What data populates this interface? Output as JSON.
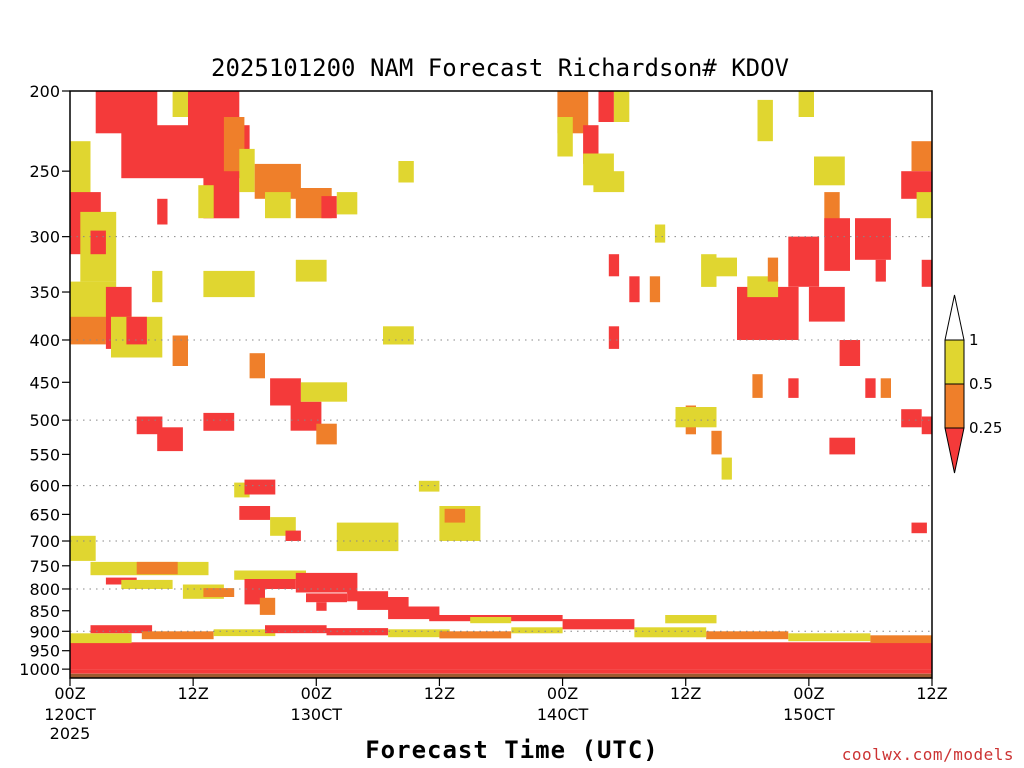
{
  "chart_data": {
    "type": "heatmap",
    "title": "2025101200 NAM Forecast Richardson# KDOV",
    "xlabel": "Forecast Time (UTC)",
    "ylabel": "",
    "credit": "coolwx.com/models",
    "y_axis": {
      "units": "hPa",
      "range": [
        200,
        1025
      ],
      "scale": "log-pressure",
      "ticks": [
        200,
        250,
        300,
        350,
        400,
        450,
        500,
        550,
        600,
        650,
        700,
        750,
        800,
        850,
        900,
        950,
        1000
      ],
      "tick_labels": [
        "200",
        "250",
        "300",
        "350",
        "400",
        "450",
        "500",
        "550",
        "600",
        "650",
        "700",
        "750",
        "800",
        "850",
        "900",
        "950",
        "1000"
      ],
      "gridlines_dotted": [
        300,
        400,
        500,
        600,
        700,
        800,
        900
      ]
    },
    "x_axis": {
      "units": "forecast hour",
      "range": [
        0,
        84
      ],
      "ticks": [
        0,
        12,
        24,
        36,
        48,
        60,
        72,
        84
      ],
      "tick_labels": [
        "00Z",
        "12Z",
        "00Z",
        "12Z",
        "00Z",
        "12Z",
        "00Z",
        "12Z"
      ],
      "date_labels": [
        {
          "hour": 0,
          "line1": "120CT",
          "line2": "2025"
        },
        {
          "hour": 24,
          "line1": "130CT"
        },
        {
          "hour": 48,
          "line1": "140CT"
        },
        {
          "hour": 72,
          "line1": "150CT"
        }
      ]
    },
    "legend": {
      "placement": "right",
      "labels": [
        "1",
        "0.5",
        "0.25"
      ],
      "bins": [
        {
          "range": "0.5-1",
          "color": "#e0d630"
        },
        {
          "range": "0.25-0.5",
          "color": "#ef7f2a"
        },
        {
          "range": "<0.25",
          "color": "#f43a3a"
        }
      ]
    },
    "colors": {
      "low": "#f43a3a",
      "mid": "#ef7f2a",
      "high": "#e0d630",
      "ground": "#9c5a2e"
    },
    "ground_level_hpa": 1013,
    "cells": [
      {
        "t0": 2.5,
        "t1": 8.5,
        "p0": 200,
        "p1": 225,
        "v": "low"
      },
      {
        "t0": 5,
        "t1": 17.5,
        "p0": 220,
        "p1": 255,
        "v": "low"
      },
      {
        "t0": 11.5,
        "t1": 16.5,
        "p0": 200,
        "p1": 225,
        "v": "low"
      },
      {
        "t0": 13,
        "t1": 16.5,
        "p0": 250,
        "p1": 285,
        "v": "low"
      },
      {
        "t0": 15,
        "t1": 17,
        "p0": 215,
        "p1": 250,
        "v": "mid"
      },
      {
        "t0": 16.5,
        "t1": 18,
        "p0": 235,
        "p1": 265,
        "v": "high"
      },
      {
        "t0": 10,
        "t1": 11.5,
        "p0": 200,
        "p1": 215,
        "v": "high"
      },
      {
        "t0": 12.5,
        "t1": 14,
        "p0": 260,
        "p1": 285,
        "v": "high"
      },
      {
        "t0": 18,
        "t1": 22.5,
        "p0": 245,
        "p1": 270,
        "v": "mid"
      },
      {
        "t0": 19,
        "t1": 21.5,
        "p0": 265,
        "p1": 285,
        "v": "high"
      },
      {
        "t0": 22,
        "t1": 25.5,
        "p0": 262,
        "p1": 285,
        "v": "mid"
      },
      {
        "t0": 24.5,
        "t1": 26,
        "p0": 268,
        "p1": 285,
        "v": "low"
      },
      {
        "t0": 26,
        "t1": 28,
        "p0": 265,
        "p1": 282,
        "v": "high"
      },
      {
        "t0": 32,
        "t1": 33.5,
        "p0": 243,
        "p1": 258,
        "v": "high"
      },
      {
        "t0": 0,
        "t1": 2,
        "p0": 230,
        "p1": 300,
        "v": "high"
      },
      {
        "t0": 0,
        "t1": 3,
        "p0": 265,
        "p1": 315,
        "v": "low"
      },
      {
        "t0": 1,
        "t1": 4.5,
        "p0": 280,
        "p1": 340,
        "v": "high"
      },
      {
        "t0": 2,
        "t1": 3.5,
        "p0": 295,
        "p1": 315,
        "v": "low"
      },
      {
        "t0": 0,
        "t1": 4.5,
        "p0": 340,
        "p1": 400,
        "v": "high"
      },
      {
        "t0": 0,
        "t1": 3.5,
        "p0": 375,
        "p1": 405,
        "v": "mid"
      },
      {
        "t0": 3.5,
        "t1": 6,
        "p0": 345,
        "p1": 410,
        "v": "low"
      },
      {
        "t0": 4,
        "t1": 9,
        "p0": 375,
        "p1": 420,
        "v": "high"
      },
      {
        "t0": 5.5,
        "t1": 7.5,
        "p0": 375,
        "p1": 405,
        "v": "low"
      },
      {
        "t0": 8,
        "t1": 9,
        "p0": 330,
        "p1": 360,
        "v": "high"
      },
      {
        "t0": 10,
        "t1": 11.5,
        "p0": 395,
        "p1": 430,
        "v": "mid"
      },
      {
        "t0": 8.5,
        "t1": 9.5,
        "p0": 270,
        "p1": 290,
        "v": "low"
      },
      {
        "t0": 6.5,
        "t1": 9,
        "p0": 495,
        "p1": 520,
        "v": "low"
      },
      {
        "t0": 8.5,
        "t1": 11,
        "p0": 510,
        "p1": 545,
        "v": "low"
      },
      {
        "t0": 13,
        "t1": 16,
        "p0": 490,
        "p1": 515,
        "v": "low"
      },
      {
        "t0": 17.5,
        "t1": 19,
        "p0": 415,
        "p1": 445,
        "v": "mid"
      },
      {
        "t0": 19.5,
        "t1": 22.5,
        "p0": 445,
        "p1": 480,
        "v": "low"
      },
      {
        "t0": 21.5,
        "t1": 24.5,
        "p0": 475,
        "p1": 515,
        "v": "low"
      },
      {
        "t0": 22.5,
        "t1": 27,
        "p0": 450,
        "p1": 475,
        "v": "high"
      },
      {
        "t0": 24,
        "t1": 26,
        "p0": 505,
        "p1": 535,
        "v": "mid"
      },
      {
        "t0": 13,
        "t1": 18,
        "p0": 330,
        "p1": 355,
        "v": "high"
      },
      {
        "t0": 22,
        "t1": 25,
        "p0": 320,
        "p1": 340,
        "v": "high"
      },
      {
        "t0": 30.5,
        "t1": 33.5,
        "p0": 385,
        "p1": 405,
        "v": "high"
      },
      {
        "t0": 16,
        "t1": 17.5,
        "p0": 595,
        "p1": 620,
        "v": "high"
      },
      {
        "t0": 16.5,
        "t1": 19.5,
        "p0": 635,
        "p1": 660,
        "v": "low"
      },
      {
        "t0": 17,
        "t1": 20,
        "p0": 590,
        "p1": 615,
        "v": "low"
      },
      {
        "t0": 19.5,
        "t1": 22,
        "p0": 655,
        "p1": 690,
        "v": "high"
      },
      {
        "t0": 21,
        "t1": 22.5,
        "p0": 680,
        "p1": 700,
        "v": "low"
      },
      {
        "t0": 26,
        "t1": 32,
        "p0": 665,
        "p1": 720,
        "v": "high"
      },
      {
        "t0": 36,
        "t1": 40,
        "p0": 635,
        "p1": 700,
        "v": "high"
      },
      {
        "t0": 36.5,
        "t1": 38.5,
        "p0": 640,
        "p1": 665,
        "v": "mid"
      },
      {
        "t0": 34,
        "t1": 36,
        "p0": 592,
        "p1": 610,
        "v": "high"
      },
      {
        "t0": 47.5,
        "t1": 50.5,
        "p0": 200,
        "p1": 225,
        "v": "mid"
      },
      {
        "t0": 47.5,
        "t1": 49,
        "p0": 215,
        "p1": 240,
        "v": "high"
      },
      {
        "t0": 50,
        "t1": 51.5,
        "p0": 220,
        "p1": 245,
        "v": "low"
      },
      {
        "t0": 50,
        "t1": 53,
        "p0": 238,
        "p1": 260,
        "v": "high"
      },
      {
        "t0": 51.5,
        "t1": 53,
        "p0": 200,
        "p1": 218,
        "v": "low"
      },
      {
        "t0": 53,
        "t1": 54.5,
        "p0": 200,
        "p1": 218,
        "v": "high"
      },
      {
        "t0": 51,
        "t1": 54,
        "p0": 250,
        "p1": 265,
        "v": "high"
      },
      {
        "t0": 52.5,
        "t1": 53.5,
        "p0": 315,
        "p1": 335,
        "v": "low"
      },
      {
        "t0": 54.5,
        "t1": 55.5,
        "p0": 335,
        "p1": 360,
        "v": "low"
      },
      {
        "t0": 56.5,
        "t1": 57.5,
        "p0": 335,
        "p1": 360,
        "v": "mid"
      },
      {
        "t0": 52.5,
        "t1": 53.5,
        "p0": 385,
        "p1": 410,
        "v": "low"
      },
      {
        "t0": 57,
        "t1": 58,
        "p0": 290,
        "p1": 305,
        "v": "high"
      },
      {
        "t0": 61.5,
        "t1": 63,
        "p0": 315,
        "p1": 345,
        "v": "high"
      },
      {
        "t0": 63,
        "t1": 65,
        "p0": 318,
        "p1": 335,
        "v": "high"
      },
      {
        "t0": 65,
        "t1": 71,
        "p0": 345,
        "p1": 400,
        "v": "low"
      },
      {
        "t0": 66,
        "t1": 69,
        "p0": 335,
        "p1": 355,
        "v": "high"
      },
      {
        "t0": 68,
        "t1": 69,
        "p0": 318,
        "p1": 340,
        "v": "mid"
      },
      {
        "t0": 70,
        "t1": 73,
        "p0": 300,
        "p1": 345,
        "v": "low"
      },
      {
        "t0": 72,
        "t1": 75.5,
        "p0": 345,
        "p1": 380,
        "v": "low"
      },
      {
        "t0": 73.5,
        "t1": 75,
        "p0": 265,
        "p1": 300,
        "v": "mid"
      },
      {
        "t0": 73.5,
        "t1": 76,
        "p0": 285,
        "p1": 330,
        "v": "low"
      },
      {
        "t0": 76.5,
        "t1": 80,
        "p0": 285,
        "p1": 320,
        "v": "low"
      },
      {
        "t0": 78.5,
        "t1": 79.5,
        "p0": 320,
        "p1": 340,
        "v": "low"
      },
      {
        "t0": 75,
        "t1": 77,
        "p0": 400,
        "p1": 430,
        "v": "low"
      },
      {
        "t0": 82,
        "t1": 84,
        "p0": 230,
        "p1": 250,
        "v": "mid"
      },
      {
        "t0": 81,
        "t1": 84,
        "p0": 250,
        "p1": 270,
        "v": "low"
      },
      {
        "t0": 82.5,
        "t1": 84,
        "p0": 265,
        "p1": 285,
        "v": "high"
      },
      {
        "t0": 83,
        "t1": 84,
        "p0": 320,
        "p1": 345,
        "v": "low"
      },
      {
        "t0": 67,
        "t1": 68.5,
        "p0": 205,
        "p1": 230,
        "v": "high"
      },
      {
        "t0": 71,
        "t1": 72.5,
        "p0": 200,
        "p1": 215,
        "v": "high"
      },
      {
        "t0": 72.5,
        "t1": 75.5,
        "p0": 240,
        "p1": 260,
        "v": "high"
      },
      {
        "t0": 60,
        "t1": 61,
        "p0": 480,
        "p1": 520,
        "v": "mid"
      },
      {
        "t0": 59,
        "t1": 63,
        "p0": 482,
        "p1": 510,
        "v": "high"
      },
      {
        "t0": 62.5,
        "t1": 63.5,
        "p0": 515,
        "p1": 550,
        "v": "mid"
      },
      {
        "t0": 63.5,
        "t1": 64.5,
        "p0": 555,
        "p1": 590,
        "v": "high"
      },
      {
        "t0": 66.5,
        "t1": 67.5,
        "p0": 440,
        "p1": 470,
        "v": "mid"
      },
      {
        "t0": 70,
        "t1": 71,
        "p0": 445,
        "p1": 470,
        "v": "low"
      },
      {
        "t0": 74,
        "t1": 76.5,
        "p0": 525,
        "p1": 550,
        "v": "low"
      },
      {
        "t0": 77.5,
        "t1": 78.5,
        "p0": 445,
        "p1": 470,
        "v": "low"
      },
      {
        "t0": 79,
        "t1": 80,
        "p0": 445,
        "p1": 470,
        "v": "mid"
      },
      {
        "t0": 81,
        "t1": 83,
        "p0": 485,
        "p1": 510,
        "v": "low"
      },
      {
        "t0": 83,
        "t1": 84,
        "p0": 495,
        "p1": 520,
        "v": "low"
      },
      {
        "t0": 82,
        "t1": 83.5,
        "p0": 665,
        "p1": 685,
        "v": "low"
      },
      {
        "t0": 0,
        "t1": 2.5,
        "p0": 690,
        "p1": 740,
        "v": "high"
      },
      {
        "t0": 2,
        "t1": 13.5,
        "p0": 742,
        "p1": 770,
        "v": "high"
      },
      {
        "t0": 6.5,
        "t1": 10.5,
        "p0": 742,
        "p1": 768,
        "v": "mid"
      },
      {
        "t0": 3.5,
        "t1": 6.5,
        "p0": 775,
        "p1": 790,
        "v": "low"
      },
      {
        "t0": 5,
        "t1": 10,
        "p0": 780,
        "p1": 800,
        "v": "high"
      },
      {
        "t0": 11,
        "t1": 15,
        "p0": 790,
        "p1": 822,
        "v": "high"
      },
      {
        "t0": 13,
        "t1": 16,
        "p0": 798,
        "p1": 818,
        "v": "mid"
      },
      {
        "t0": 16,
        "t1": 23,
        "p0": 760,
        "p1": 780,
        "v": "high"
      },
      {
        "t0": 17,
        "t1": 22,
        "p0": 778,
        "p1": 800,
        "v": "low"
      },
      {
        "t0": 22,
        "t1": 28,
        "p0": 765,
        "p1": 808,
        "v": "low"
      },
      {
        "t0": 27,
        "t1": 31,
        "p0": 805,
        "p1": 828,
        "v": "low"
      },
      {
        "t0": 23,
        "t1": 27,
        "p0": 810,
        "p1": 830,
        "v": "low"
      },
      {
        "t0": 28,
        "t1": 33,
        "p0": 818,
        "p1": 848,
        "v": "low"
      },
      {
        "t0": 31,
        "t1": 36,
        "p0": 840,
        "p1": 870,
        "v": "low"
      },
      {
        "t0": 35,
        "t1": 48,
        "p0": 860,
        "p1": 875,
        "v": "low"
      },
      {
        "t0": 17,
        "t1": 19,
        "p0": 800,
        "p1": 835,
        "v": "low"
      },
      {
        "t0": 18.5,
        "t1": 20,
        "p0": 820,
        "p1": 860,
        "v": "mid"
      },
      {
        "t0": 24,
        "t1": 25,
        "p0": 830,
        "p1": 850,
        "v": "low"
      },
      {
        "t0": 0,
        "t1": 84,
        "p0": 928,
        "p1": 1000,
        "v": "low"
      },
      {
        "t0": 0,
        "t1": 6,
        "p0": 905,
        "p1": 930,
        "v": "high"
      },
      {
        "t0": 2,
        "t1": 8,
        "p0": 885,
        "p1": 905,
        "v": "low"
      },
      {
        "t0": 7,
        "t1": 14,
        "p0": 900,
        "p1": 920,
        "v": "mid"
      },
      {
        "t0": 14,
        "t1": 20,
        "p0": 895,
        "p1": 912,
        "v": "high"
      },
      {
        "t0": 19,
        "t1": 25,
        "p0": 885,
        "p1": 905,
        "v": "low"
      },
      {
        "t0": 25,
        "t1": 31,
        "p0": 892,
        "p1": 910,
        "v": "low"
      },
      {
        "t0": 31,
        "t1": 37,
        "p0": 895,
        "p1": 915,
        "v": "high"
      },
      {
        "t0": 36,
        "t1": 43,
        "p0": 900,
        "p1": 918,
        "v": "mid"
      },
      {
        "t0": 43,
        "t1": 48,
        "p0": 890,
        "p1": 905,
        "v": "high"
      },
      {
        "t0": 48,
        "t1": 55,
        "p0": 870,
        "p1": 895,
        "v": "low"
      },
      {
        "t0": 55,
        "t1": 62,
        "p0": 890,
        "p1": 915,
        "v": "high"
      },
      {
        "t0": 62,
        "t1": 70,
        "p0": 900,
        "p1": 920,
        "v": "mid"
      },
      {
        "t0": 70,
        "t1": 78,
        "p0": 905,
        "p1": 925,
        "v": "high"
      },
      {
        "t0": 78,
        "t1": 84,
        "p0": 910,
        "p1": 930,
        "v": "mid"
      },
      {
        "t0": 58,
        "t1": 63,
        "p0": 860,
        "p1": 880,
        "v": "high"
      },
      {
        "t0": 39,
        "t1": 43,
        "p0": 865,
        "p1": 880,
        "v": "high"
      },
      {
        "t0": 0,
        "t1": 84,
        "p0": 1000,
        "p1": 1013,
        "v": "low"
      }
    ]
  }
}
